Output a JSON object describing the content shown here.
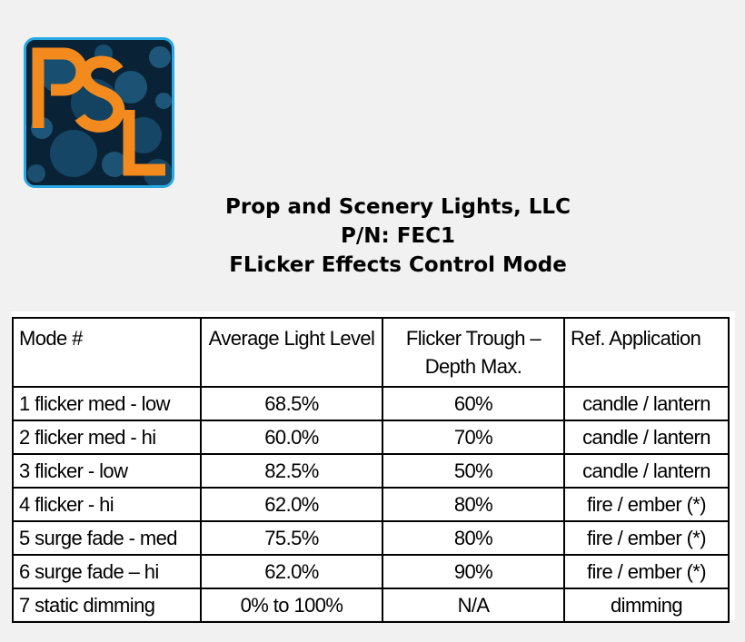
{
  "logo": {
    "text": "PSL",
    "bg_color": "#0a2236",
    "border_color": "#2aa8e4",
    "letter_color": "#f28a1e"
  },
  "header": {
    "company": "Prop and Scenery Lights, LLC",
    "part_number": "P/N: FEC1",
    "title": "FLicker Effects Control Mode"
  },
  "table": {
    "columns": [
      "Mode #",
      "Average Light Level",
      "Flicker Trough – Depth Max.",
      "Ref.  Application"
    ],
    "rows": [
      {
        "mode": "1 flicker med - low",
        "level": "68.5%",
        "trough": "60%",
        "application": "candle / lantern"
      },
      {
        "mode": "2 flicker med - hi",
        "level": "60.0%",
        "trough": "70%",
        "application": "candle / lantern"
      },
      {
        "mode": "3 flicker - low",
        "level": "82.5%",
        "trough": "50%",
        "application": "candle / lantern"
      },
      {
        "mode": "4 flicker - hi",
        "level": "62.0%",
        "trough": "80%",
        "application": "fire / ember (*)"
      },
      {
        "mode": "5 surge fade - med",
        "level": "75.5%",
        "trough": "80%",
        "application": "fire / ember (*)"
      },
      {
        "mode": "6 surge fade – hi",
        "level": "62.0%",
        "trough": "90%",
        "application": "fire / ember (*)"
      },
      {
        "mode": "7 static dimming",
        "level": "0% to 100%",
        "trough": "N/A",
        "application": "dimming"
      }
    ]
  }
}
